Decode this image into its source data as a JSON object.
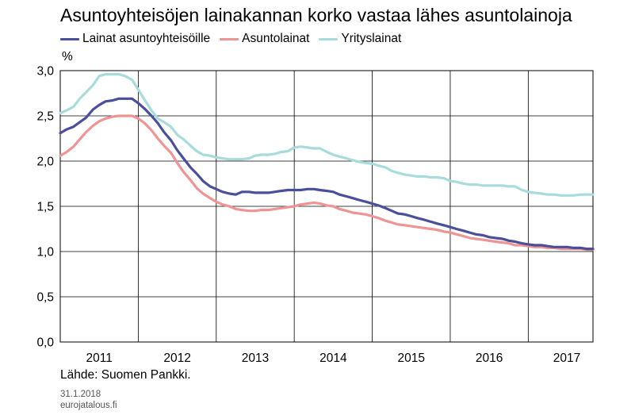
{
  "chart_data": {
    "type": "line",
    "title": "Asuntoyhteisöjen lainakannan korko vastaa lähes asuntolainoja",
    "unit": "%",
    "ylim": [
      0,
      3
    ],
    "yticks": [
      "0,0",
      "0,5",
      "1,0",
      "1,5",
      "2,0",
      "2,5",
      "3,0"
    ],
    "xlim": [
      2011.0,
      2017.83
    ],
    "year_labels": [
      "2011",
      "2012",
      "2013",
      "2014",
      "2015",
      "2016",
      "2017"
    ],
    "grid": true,
    "legend_position": "top-left",
    "x": [
      2011.0,
      2011.08,
      2011.17,
      2011.25,
      2011.33,
      2011.42,
      2011.5,
      2011.58,
      2011.67,
      2011.75,
      2011.83,
      2011.92,
      2012.0,
      2012.08,
      2012.17,
      2012.25,
      2012.33,
      2012.42,
      2012.5,
      2012.58,
      2012.67,
      2012.75,
      2012.83,
      2012.92,
      2013.0,
      2013.08,
      2013.17,
      2013.25,
      2013.33,
      2013.42,
      2013.5,
      2013.58,
      2013.67,
      2013.75,
      2013.83,
      2013.92,
      2014.0,
      2014.08,
      2014.17,
      2014.25,
      2014.33,
      2014.42,
      2014.5,
      2014.58,
      2014.67,
      2014.75,
      2014.83,
      2014.92,
      2015.0,
      2015.08,
      2015.17,
      2015.25,
      2015.33,
      2015.42,
      2015.5,
      2015.58,
      2015.67,
      2015.75,
      2015.83,
      2015.92,
      2016.0,
      2016.08,
      2016.17,
      2016.25,
      2016.33,
      2016.42,
      2016.5,
      2016.58,
      2016.67,
      2016.75,
      2016.83,
      2016.92,
      2017.0,
      2017.08,
      2017.17,
      2017.25,
      2017.33,
      2017.42,
      2017.5,
      2017.58,
      2017.67,
      2017.75,
      2017.83
    ],
    "series": [
      {
        "name": "Lainat asuntoyhteisöille",
        "color": "#4a4f9a",
        "values": [
          2.31,
          2.35,
          2.38,
          2.43,
          2.48,
          2.57,
          2.62,
          2.66,
          2.67,
          2.69,
          2.69,
          2.69,
          2.64,
          2.58,
          2.5,
          2.42,
          2.32,
          2.23,
          2.12,
          2.03,
          1.93,
          1.86,
          1.78,
          1.72,
          1.69,
          1.66,
          1.64,
          1.63,
          1.66,
          1.66,
          1.65,
          1.65,
          1.65,
          1.66,
          1.67,
          1.68,
          1.68,
          1.68,
          1.69,
          1.69,
          1.68,
          1.67,
          1.66,
          1.63,
          1.61,
          1.59,
          1.57,
          1.55,
          1.53,
          1.51,
          1.48,
          1.45,
          1.42,
          1.41,
          1.39,
          1.37,
          1.35,
          1.33,
          1.31,
          1.29,
          1.27,
          1.25,
          1.23,
          1.21,
          1.19,
          1.18,
          1.16,
          1.15,
          1.14,
          1.12,
          1.11,
          1.09,
          1.08,
          1.07,
          1.07,
          1.06,
          1.05,
          1.05,
          1.05,
          1.04,
          1.04,
          1.03,
          1.03
        ]
      },
      {
        "name": "Asuntolainat",
        "color": "#ef9494",
        "values": [
          2.06,
          2.1,
          2.16,
          2.24,
          2.32,
          2.39,
          2.44,
          2.47,
          2.49,
          2.5,
          2.5,
          2.5,
          2.47,
          2.42,
          2.34,
          2.25,
          2.17,
          2.09,
          1.98,
          1.88,
          1.79,
          1.7,
          1.64,
          1.59,
          1.55,
          1.52,
          1.5,
          1.47,
          1.46,
          1.45,
          1.45,
          1.46,
          1.46,
          1.47,
          1.48,
          1.49,
          1.5,
          1.52,
          1.53,
          1.54,
          1.53,
          1.51,
          1.5,
          1.47,
          1.45,
          1.43,
          1.42,
          1.41,
          1.39,
          1.37,
          1.34,
          1.32,
          1.3,
          1.29,
          1.28,
          1.27,
          1.26,
          1.25,
          1.24,
          1.22,
          1.21,
          1.19,
          1.17,
          1.15,
          1.14,
          1.13,
          1.12,
          1.11,
          1.1,
          1.09,
          1.07,
          1.07,
          1.06,
          1.05,
          1.05,
          1.04,
          1.04,
          1.03,
          1.03,
          1.03,
          1.03,
          1.02,
          1.02
        ]
      },
      {
        "name": "Yrityslainat",
        "color": "#a8dcdc",
        "values": [
          2.53,
          2.56,
          2.6,
          2.69,
          2.76,
          2.84,
          2.94,
          2.96,
          2.96,
          2.96,
          2.94,
          2.9,
          2.79,
          2.68,
          2.56,
          2.47,
          2.43,
          2.38,
          2.29,
          2.24,
          2.17,
          2.11,
          2.07,
          2.06,
          2.04,
          2.03,
          2.02,
          2.02,
          2.02,
          2.03,
          2.06,
          2.07,
          2.07,
          2.08,
          2.1,
          2.11,
          2.15,
          2.16,
          2.15,
          2.14,
          2.14,
          2.1,
          2.07,
          2.05,
          2.03,
          2.01,
          1.99,
          1.98,
          1.97,
          1.95,
          1.93,
          1.89,
          1.87,
          1.85,
          1.84,
          1.83,
          1.83,
          1.82,
          1.82,
          1.81,
          1.78,
          1.77,
          1.75,
          1.74,
          1.74,
          1.73,
          1.73,
          1.73,
          1.73,
          1.72,
          1.72,
          1.68,
          1.66,
          1.65,
          1.64,
          1.63,
          1.63,
          1.62,
          1.62,
          1.62,
          1.63,
          1.63,
          1.63
        ]
      }
    ]
  },
  "source": "Lähde: Suomen Pankki.",
  "footer": {
    "date": "31.1.2018",
    "site": "eurojatalous.fi"
  }
}
